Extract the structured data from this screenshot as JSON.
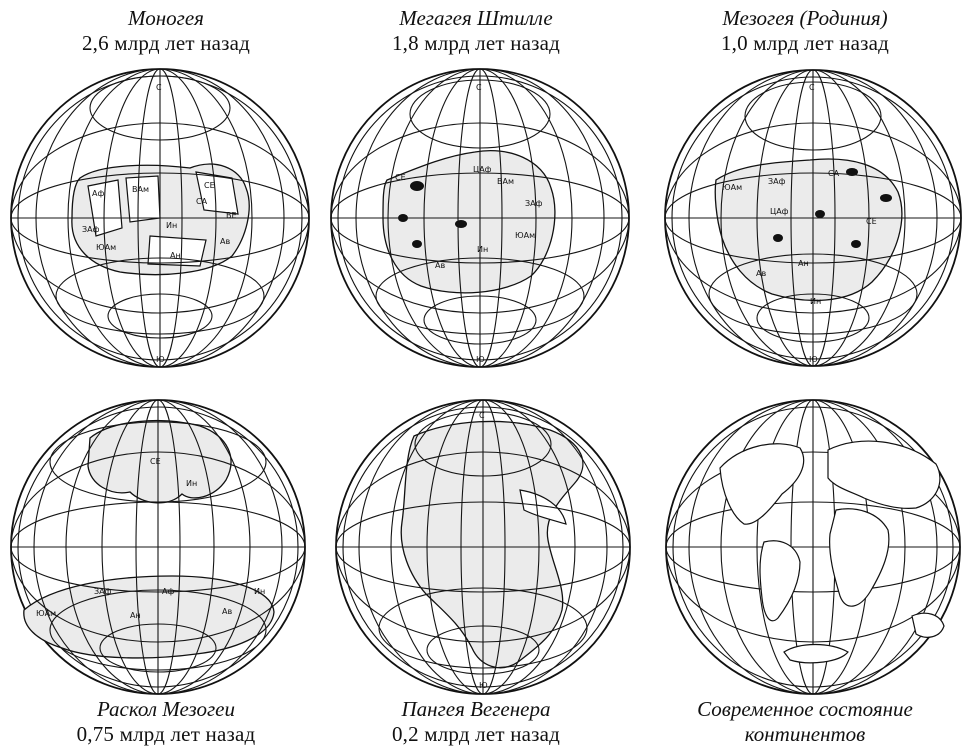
{
  "panels": [
    {
      "id": "monogea",
      "title": "Моногея",
      "subtitle": "2,6 млрд лет назад",
      "labels": [
        "Аф",
        "ВАм",
        "СЕ",
        "ЗАф",
        "Ин",
        "Ан",
        "ЮАм",
        "Ав",
        "ВЕ",
        "СА",
        "С",
        "Ю"
      ]
    },
    {
      "id": "megagea",
      "title": "Мегагея Штилле",
      "subtitle": "1,8 млрд лет назад",
      "labels": [
        "СЕ",
        "ЦАф",
        "ЗАф",
        "ЮАм",
        "Ав",
        "Ин",
        "ВАм",
        "С",
        "Ю"
      ]
    },
    {
      "id": "mesogea",
      "title": "Мезогея (Родиния)",
      "subtitle": "1,0 млрд лет назад",
      "labels": [
        "ЮАм",
        "ЗАф",
        "СА",
        "ЦАф",
        "СЕ",
        "Ан",
        "Ин",
        "Ав",
        "С",
        "Ю"
      ]
    },
    {
      "id": "mesogea-split",
      "title": "Раскол Мезогеи",
      "subtitle": "0,75 млрд лет назад",
      "labels": [
        "СЕ",
        "Ин",
        "ЗАф",
        "Аф",
        "ЮАм",
        "Ан",
        "Ав",
        "Ин"
      ]
    },
    {
      "id": "pangea",
      "title": "Пангея Вегенера",
      "subtitle": "0,2 млрд лет назад",
      "labels": [
        "С",
        "Ю"
      ]
    },
    {
      "id": "present",
      "title": "Современное состояние",
      "subtitle": "континентов",
      "labels": []
    }
  ]
}
